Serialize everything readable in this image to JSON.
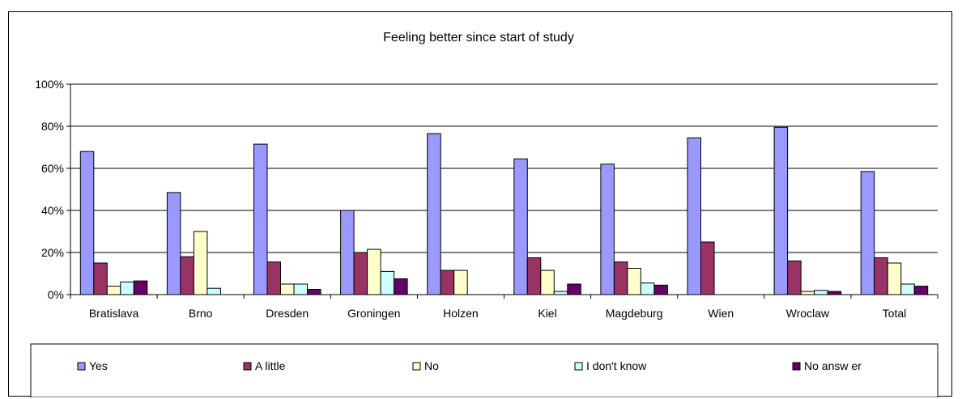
{
  "chart_data": {
    "type": "bar",
    "title": "Feeling better since start of study",
    "xlabel": "",
    "ylabel": "",
    "ylim": [
      0,
      100
    ],
    "yticks": [
      "0%",
      "20%",
      "40%",
      "60%",
      "80%",
      "100%"
    ],
    "ytick_values": [
      0,
      20,
      40,
      60,
      80,
      100
    ],
    "grid": true,
    "legend_position": "bottom",
    "categories": [
      "Bratislava",
      "Brno",
      "Dresden",
      "Groningen",
      "Holzen",
      "Kiel",
      "Magdeburg",
      "Wien",
      "Wroclaw",
      "Total"
    ],
    "series": [
      {
        "name": "Yes",
        "color": "#9999ff",
        "values": [
          68,
          48.5,
          71.5,
          40,
          76.5,
          64.5,
          62,
          74.5,
          79.5,
          58.5
        ]
      },
      {
        "name": "A little",
        "color": "#993366",
        "values": [
          15,
          18,
          15.5,
          20,
          11.5,
          17.5,
          15.5,
          25,
          16,
          17.5
        ]
      },
      {
        "name": "No",
        "color": "#ffffcc",
        "values": [
          4,
          30,
          5,
          21.5,
          11.5,
          11.5,
          12.5,
          0,
          1.5,
          15
        ]
      },
      {
        "name": "I don't know",
        "color": "#ccffff",
        "values": [
          6,
          3,
          5,
          11,
          0,
          1.5,
          5.5,
          0,
          2,
          5
        ]
      },
      {
        "name": "No answ er",
        "color": "#660066",
        "values": [
          6.5,
          0,
          2.5,
          7.5,
          0,
          5,
          4.5,
          0,
          1.5,
          4
        ]
      }
    ]
  }
}
